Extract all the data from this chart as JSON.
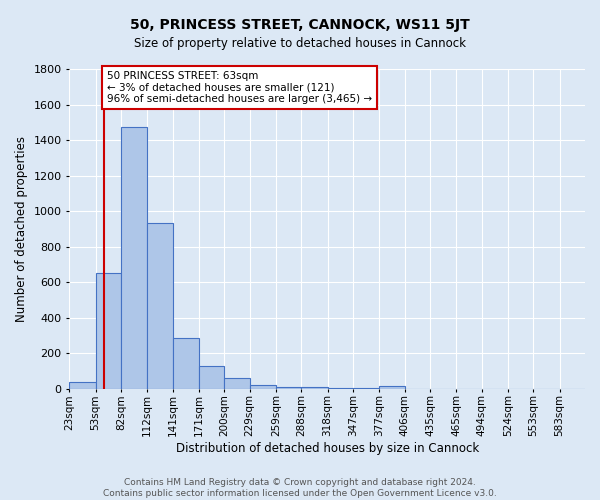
{
  "title": "50, PRINCESS STREET, CANNOCK, WS11 5JT",
  "subtitle": "Size of property relative to detached houses in Cannock",
  "xlabel": "Distribution of detached houses by size in Cannock",
  "ylabel": "Number of detached properties",
  "footnote": "Contains HM Land Registry data © Crown copyright and database right 2024.\nContains public sector information licensed under the Open Government Licence v3.0.",
  "bar_edges": [
    23,
    53,
    82,
    112,
    141,
    171,
    200,
    229,
    259,
    288,
    318,
    347,
    377,
    406,
    435,
    465,
    494,
    524,
    553,
    583,
    612
  ],
  "bar_heights": [
    40,
    650,
    1475,
    935,
    285,
    130,
    63,
    22,
    12,
    8,
    5,
    3,
    18,
    0,
    0,
    0,
    0,
    0,
    0,
    0
  ],
  "bar_color": "#aec6e8",
  "bar_edge_color": "#4472c4",
  "bg_color": "#dce8f5",
  "plot_bg_color": "#dce8f5",
  "grid_color": "#ffffff",
  "property_line_x": 63,
  "property_line_color": "#cc0000",
  "annotation_text": "50 PRINCESS STREET: 63sqm\n← 3% of detached houses are smaller (121)\n96% of semi-detached houses are larger (3,465) →",
  "annotation_box_color": "#cc0000",
  "ylim": [
    0,
    1800
  ],
  "yticks": [
    0,
    200,
    400,
    600,
    800,
    1000,
    1200,
    1400,
    1600,
    1800
  ],
  "title_fontsize": 10,
  "subtitle_fontsize": 8.5,
  "ylabel_fontsize": 8.5,
  "xlabel_fontsize": 8.5,
  "footnote_fontsize": 6.5,
  "tick_fontsize": 7.5,
  "ytick_fontsize": 8
}
